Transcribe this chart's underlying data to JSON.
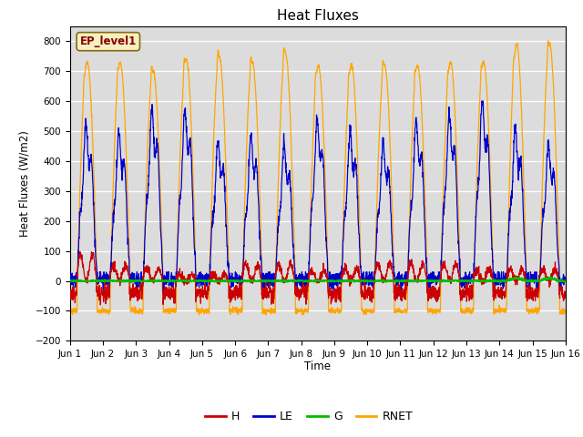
{
  "title": "Heat Fluxes",
  "ylabel": "Heat Fluxes (W/m2)",
  "xlabel": "Time",
  "ylim": [
    -200,
    850
  ],
  "yticks": [
    -200,
    -100,
    0,
    100,
    200,
    300,
    400,
    500,
    600,
    700,
    800
  ],
  "colors": {
    "H": "#cc0000",
    "LE": "#0000cc",
    "G": "#00bb00",
    "RNET": "#ffa500"
  },
  "background_color": "#dcdcdc",
  "text_box_label": "EP_level1",
  "legend_labels": [
    "H",
    "LE",
    "G",
    "RNET"
  ],
  "n_days": 15,
  "pts_per_day": 144,
  "xtick_positions": [
    0,
    1,
    2,
    3,
    4,
    5,
    6,
    7,
    8,
    9,
    10,
    11,
    12,
    13,
    14,
    15
  ],
  "xtick_labels": [
    "Jun 1",
    "Jun 2",
    "Jun 3",
    "Jun 4",
    "Jun 5",
    "Jun 6",
    "Jun 7",
    "Jun 8",
    "Jun 9",
    "Jun 10",
    "Jun 11",
    "Jun 12",
    "Jun 13",
    "Jun 14",
    "Jun 15",
    "Jun 16"
  ]
}
